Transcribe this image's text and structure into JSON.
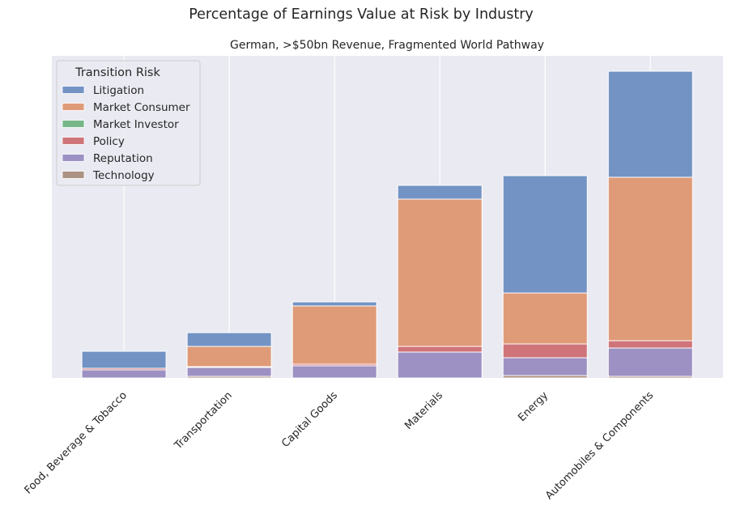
{
  "chart_data": {
    "type": "bar",
    "stacked": true,
    "title": "Percentage of Earnings Value at Risk by Industry",
    "subtitle": "German, >$50bn Revenue, Fragmented World Pathway",
    "xlabel": "",
    "ylabel": "",
    "y_ticks_visible": false,
    "ylim": [
      0,
      3.98
    ],
    "grid": true,
    "legend": {
      "title": "Transition Risk",
      "placement": "top-left",
      "entries": [
        "Litigation",
        "Market Consumer",
        "Market Investor",
        "Policy",
        "Reputation",
        "Technology"
      ]
    },
    "categories": [
      "Food, Beverage & Tobacco",
      "Transportation",
      "Capital Goods",
      "Materials",
      "Energy",
      "Automobiles & Components"
    ],
    "stack_order_bottom_to_top": [
      "Technology",
      "Reputation",
      "Policy",
      "Market Investor",
      "Market Consumer",
      "Litigation"
    ],
    "series": [
      {
        "name": "Litigation",
        "color": "#7393c4",
        "values": [
          0.21,
          0.17,
          0.05,
          0.17,
          1.45,
          1.31
        ]
      },
      {
        "name": "Market Consumer",
        "color": "#df9b78",
        "values": [
          0.0,
          0.25,
          0.72,
          1.82,
          0.63,
          2.02
        ]
      },
      {
        "name": "Market Investor",
        "color": "#76b789",
        "values": [
          0.0,
          0.0,
          0.0,
          0.0,
          0.0,
          0.0
        ]
      },
      {
        "name": "Policy",
        "color": "#cf7479",
        "values": [
          0.02,
          0.01,
          0.02,
          0.07,
          0.17,
          0.09
        ]
      },
      {
        "name": "Reputation",
        "color": "#9d91c3",
        "values": [
          0.1,
          0.11,
          0.15,
          0.32,
          0.22,
          0.35
        ]
      },
      {
        "name": "Technology",
        "color": "#ab9282",
        "values": [
          0.0,
          0.02,
          0.0,
          0.0,
          0.03,
          0.02
        ]
      }
    ],
    "style": {
      "plot_background": "#eaeaf2",
      "grid_color": "#ffffff",
      "bar_edge": "#ffffff"
    }
  }
}
